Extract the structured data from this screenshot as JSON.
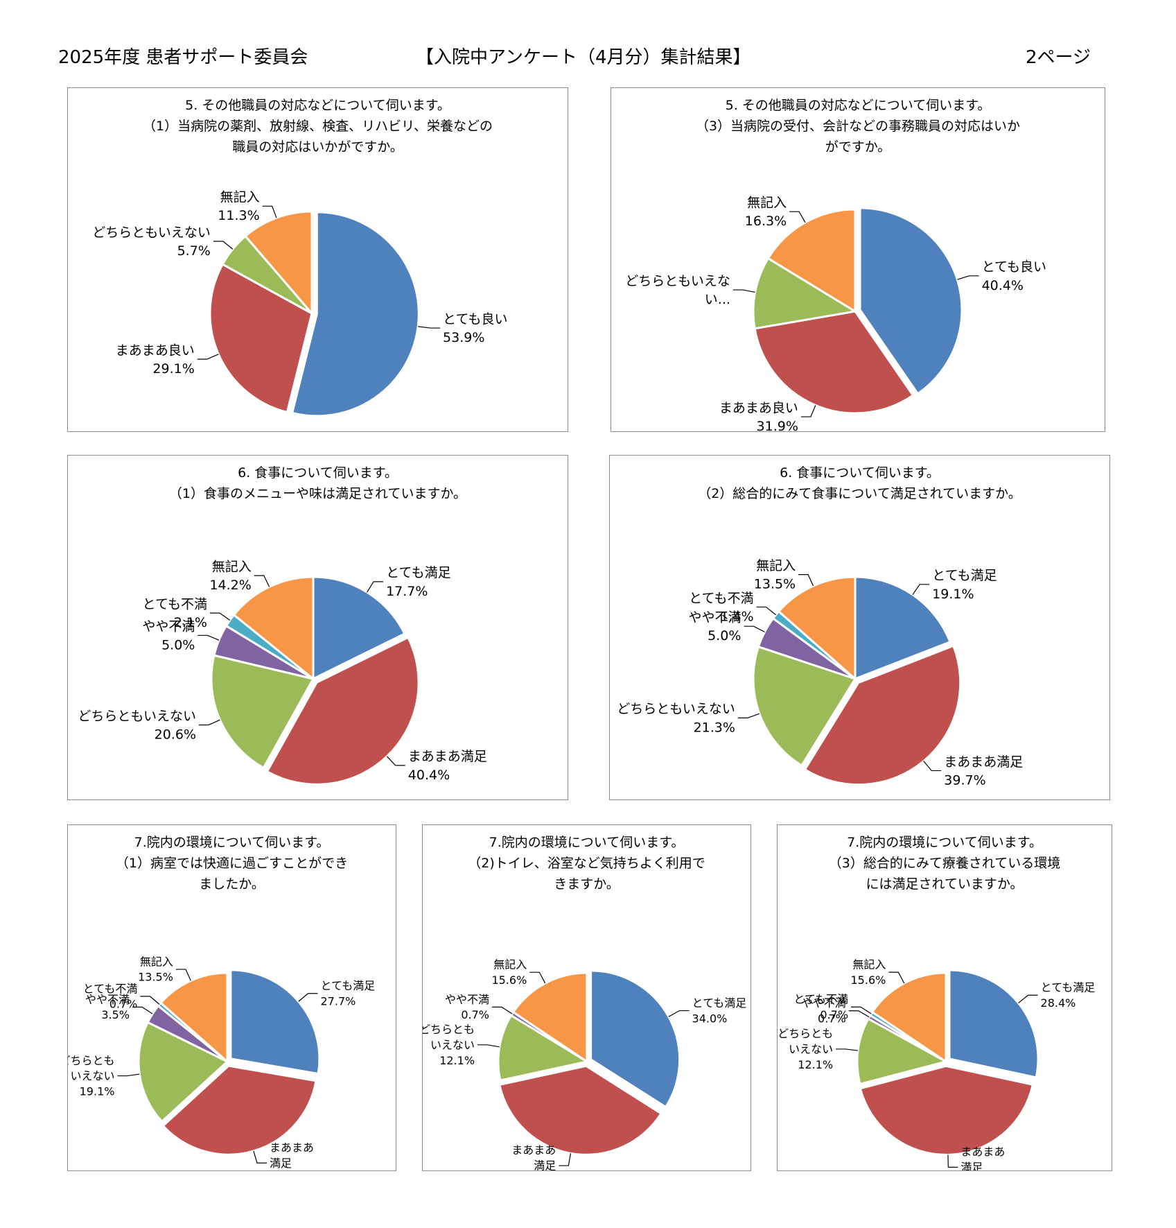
{
  "header": {
    "left": "2025年度 患者サポート委員会",
    "center": "【入院中アンケート（4月分）集計結果】",
    "right": "2ページ"
  },
  "colors": {
    "blue": "#4f81bd",
    "red": "#c0504d",
    "green": "#9bbb59",
    "purple": "#8064a2",
    "aqua": "#4bacc6",
    "orange": "#f79646"
  },
  "chart_data": [
    {
      "type": "pie",
      "title_lines": [
        "5. その他職員の対応などについて伺います。",
        "（1）当病院の薬剤、放射線、検査、リハビリ、栄養などの",
        "職員の対応はいかがですか。"
      ],
      "slices": [
        {
          "label": [
            "とても良い"
          ],
          "value": 53.9,
          "pct": "53.9%",
          "color": "#4f81bd"
        },
        {
          "label": [
            "まあまあ良い"
          ],
          "value": 29.1,
          "pct": "29.1%",
          "color": "#c0504d"
        },
        {
          "label": [
            "どちらともいえない"
          ],
          "value": 5.7,
          "pct": "5.7%",
          "color": "#9bbb59"
        },
        {
          "label": [
            "無記入"
          ],
          "value": 11.3,
          "pct": "11.3%",
          "color": "#f79646"
        }
      ]
    },
    {
      "type": "pie",
      "title_lines": [
        "5. その他職員の対応などについて伺います。",
        "（3）当病院の受付、会計などの事務職員の対応はいか",
        "がですか。"
      ],
      "slices": [
        {
          "label": [
            "とても良い"
          ],
          "value": 40.4,
          "pct": "40.4%",
          "color": "#4f81bd"
        },
        {
          "label": [
            "まあまあ良い"
          ],
          "value": 31.9,
          "pct": "31.9%",
          "color": "#c0504d"
        },
        {
          "label": [
            "どちらともいえな",
            "い..."
          ],
          "value": 11.4,
          "pct": "",
          "color": "#9bbb59"
        },
        {
          "label": [
            "無記入"
          ],
          "value": 16.3,
          "pct": "16.3%",
          "color": "#f79646"
        }
      ]
    },
    {
      "type": "pie",
      "title_lines": [
        "6. 食事について伺います。",
        "（1）食事のメニューや味は満足されていますか。"
      ],
      "slices": [
        {
          "label": [
            "とても満足"
          ],
          "value": 17.7,
          "pct": "17.7%",
          "color": "#4f81bd"
        },
        {
          "label": [
            "まあまあ満足"
          ],
          "value": 40.4,
          "pct": "40.4%",
          "color": "#c0504d"
        },
        {
          "label": [
            "どちらともいえない"
          ],
          "value": 20.6,
          "pct": "20.6%",
          "color": "#9bbb59"
        },
        {
          "label": [
            "やや不満"
          ],
          "value": 5.0,
          "pct": "5.0%",
          "color": "#8064a2"
        },
        {
          "label": [
            "とても不満"
          ],
          "value": 2.1,
          "pct": "2.1%",
          "color": "#4bacc6"
        },
        {
          "label": [
            "無記入"
          ],
          "value": 14.2,
          "pct": "14.2%",
          "color": "#f79646"
        }
      ]
    },
    {
      "type": "pie",
      "title_lines": [
        "6. 食事について伺います。",
        "（2）総合的にみて食事について満足されていますか。"
      ],
      "slices": [
        {
          "label": [
            "とても満足"
          ],
          "value": 19.1,
          "pct": "19.1%",
          "color": "#4f81bd"
        },
        {
          "label": [
            "まあまあ満足"
          ],
          "value": 39.7,
          "pct": "39.7%",
          "color": "#c0504d"
        },
        {
          "label": [
            "どちらともいえない"
          ],
          "value": 21.3,
          "pct": "21.3%",
          "color": "#9bbb59"
        },
        {
          "label": [
            "やや不満"
          ],
          "value": 5.0,
          "pct": "5.0%",
          "color": "#8064a2"
        },
        {
          "label": [
            "とても不満"
          ],
          "value": 1.4,
          "pct": "1.4%",
          "color": "#4bacc6"
        },
        {
          "label": [
            "無記入"
          ],
          "value": 13.5,
          "pct": "13.5%",
          "color": "#f79646"
        }
      ]
    },
    {
      "type": "pie",
      "title_lines": [
        "7.院内の環境について伺います。",
        "（1）病室では快適に過ごすことができ",
        "ましたか。"
      ],
      "slices": [
        {
          "label": [
            "とても満足"
          ],
          "value": 27.7,
          "pct": "27.7%",
          "color": "#4f81bd"
        },
        {
          "label": [
            "まあまあ",
            "満足"
          ],
          "value": 35.5,
          "pct": "35.5%",
          "color": "#c0504d"
        },
        {
          "label": [
            "どちらとも",
            "いえない"
          ],
          "value": 19.1,
          "pct": "19.1%",
          "color": "#9bbb59"
        },
        {
          "label": [
            "やや不満"
          ],
          "value": 3.5,
          "pct": "3.5%",
          "color": "#8064a2"
        },
        {
          "label": [
            "とても不満"
          ],
          "value": 0.7,
          "pct": "0.7%",
          "color": "#4bacc6"
        },
        {
          "label": [
            "無記入"
          ],
          "value": 13.5,
          "pct": "13.5%",
          "color": "#f79646"
        }
      ]
    },
    {
      "type": "pie",
      "title_lines": [
        "7.院内の環境について伺います。",
        "（2)トイレ、浴室など気持ちよく利用で",
        "きますか。"
      ],
      "slices": [
        {
          "label": [
            "とても満足"
          ],
          "value": 34.0,
          "pct": "34.0%",
          "color": "#4f81bd"
        },
        {
          "label": [
            "まあまあ",
            "満足"
          ],
          "value": 37.6,
          "pct": "37.6%",
          "color": "#c0504d"
        },
        {
          "label": [
            "どちらとも",
            "いえない"
          ],
          "value": 12.1,
          "pct": "12.1%",
          "color": "#9bbb59"
        },
        {
          "label": [
            "やや不満"
          ],
          "value": 0.7,
          "pct": "0.7%",
          "color": "#8064a2"
        },
        {
          "label": [
            "無記入"
          ],
          "value": 15.6,
          "pct": "15.6%",
          "color": "#f79646"
        }
      ]
    },
    {
      "type": "pie",
      "title_lines": [
        "7.院内の環境について伺います。",
        "（3）総合的にみて療養されている環境",
        "には満足されていますか。"
      ],
      "slices": [
        {
          "label": [
            "とても満足"
          ],
          "value": 28.4,
          "pct": "28.4%",
          "color": "#4f81bd"
        },
        {
          "label": [
            "まあまあ",
            "満足"
          ],
          "value": 42.6,
          "pct": "42.6%",
          "color": "#c0504d"
        },
        {
          "label": [
            "どちらとも",
            "いえない"
          ],
          "value": 12.1,
          "pct": "12.1%",
          "color": "#9bbb59"
        },
        {
          "label": [
            "やや不満"
          ],
          "value": 0.7,
          "pct": "0.7%",
          "color": "#8064a2"
        },
        {
          "label": [
            "とても不満"
          ],
          "value": 0.7,
          "pct": "0.7%",
          "color": "#4bacc6"
        },
        {
          "label": [
            "無記入"
          ],
          "value": 15.6,
          "pct": "15.6%",
          "color": "#f79646"
        }
      ]
    }
  ]
}
